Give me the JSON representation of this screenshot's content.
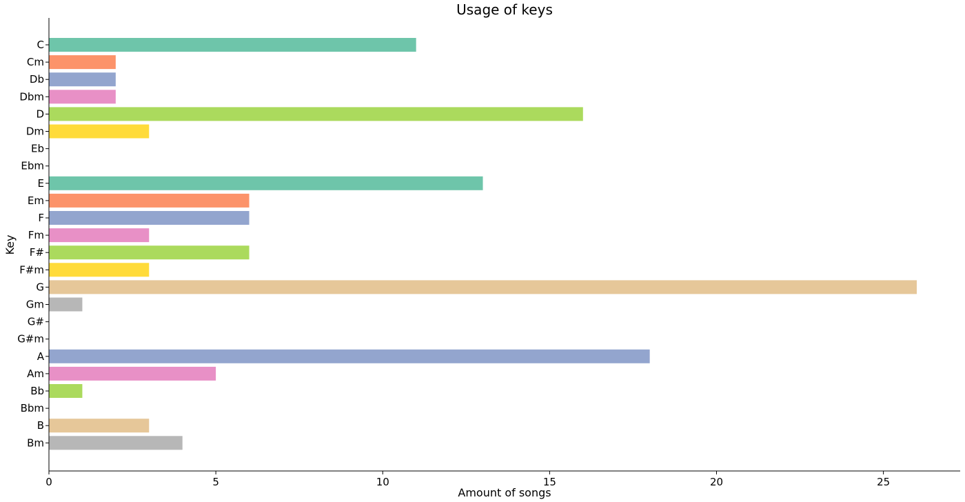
{
  "chart_data": {
    "type": "bar",
    "orientation": "horizontal",
    "title": "Usage of keys",
    "xlabel": "Amount of songs",
    "ylabel": "Key",
    "xlim": [
      0,
      27.3
    ],
    "xticks": [
      0,
      5,
      10,
      15,
      20,
      25
    ],
    "grid": false,
    "categories": [
      "C",
      "Cm",
      "Db",
      "Dbm",
      "D",
      "Dm",
      "Eb",
      "Ebm",
      "E",
      "Em",
      "F",
      "Fm",
      "F#",
      "F#m",
      "G",
      "Gm",
      "G#",
      "G#m",
      "A",
      "Am",
      "Bb",
      "Bbm",
      "B",
      "Bm"
    ],
    "values": [
      11,
      2,
      2,
      2,
      16,
      3,
      0,
      0,
      13,
      6,
      6,
      3,
      6,
      3,
      26,
      1,
      0,
      0,
      18,
      5,
      1,
      0,
      3,
      4
    ],
    "colors": [
      "#66c2a5",
      "#fc8d62",
      "#8da0cb",
      "#e78ac3",
      "#a6d854",
      "#ffd92f",
      "#e5c494",
      "#b3b3b3"
    ]
  }
}
